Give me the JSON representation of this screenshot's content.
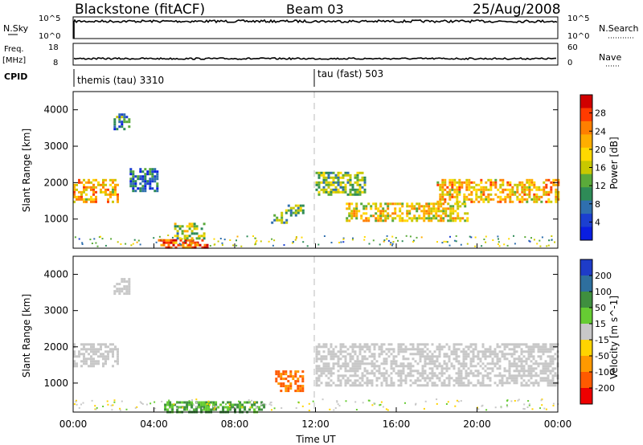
{
  "header": {
    "station": "Blackstone (fitACF)",
    "beam": "Beam 03",
    "date": "25/Aug/2008"
  },
  "strip_panels": {
    "nsky_label": "N.Sky",
    "nsky_ticks": [
      "10^5",
      "10^0"
    ],
    "nsearch_label": "N.Search",
    "nsearch_ticks": [
      "10^5",
      "10^0"
    ],
    "freq_label": "Freq.",
    "freq_unit": "[MHz]",
    "freq_ticks": [
      "18",
      "8"
    ],
    "nave_label": "Nave",
    "nave_ticks": [
      "60",
      "0"
    ],
    "cpid_label": "CPID",
    "cpid_entries": [
      {
        "label": "themis (tau) 3310",
        "start_hour": 0
      },
      {
        "label": "tau (fast) 503",
        "start_hour": 12
      }
    ]
  },
  "chart_data": [
    {
      "type": "heatmap",
      "parameter": "power",
      "ylabel": "Slant Range [km]",
      "xlim": [
        0,
        24
      ],
      "ylim": [
        200,
        4500
      ],
      "yticks": [
        1000,
        2000,
        3000,
        4000
      ],
      "colorbar": {
        "label": "Power [dB]",
        "ticks": [
          "28",
          "24",
          "20",
          "16",
          "12",
          "8",
          "4"
        ],
        "colors": [
          "#d10000",
          "#ff3b00",
          "#ff7f00",
          "#ffae00",
          "#ffd900",
          "#c8c800",
          "#5aaa3a",
          "#2e8b57",
          "#2f6fae",
          "#1b3fd0",
          "#0a1ee0"
        ]
      },
      "echo_regions": [
        {
          "t0": 0.0,
          "t1": 2.2,
          "r0": 1450,
          "r1": 2100,
          "level": 20
        },
        {
          "t0": 2.0,
          "t1": 2.8,
          "r0": 3500,
          "r1": 3900,
          "level": 8
        },
        {
          "t0": 2.8,
          "t1": 4.2,
          "r0": 1800,
          "r1": 2400,
          "level": 6
        },
        {
          "t0": 4.2,
          "t1": 6.8,
          "r0": 200,
          "r1": 450,
          "level": 26
        },
        {
          "t0": 5.0,
          "t1": 6.5,
          "r0": 500,
          "r1": 900,
          "level": 14
        },
        {
          "t0": 9.8,
          "t1": 10.6,
          "r0": 900,
          "r1": 1200,
          "level": 10
        },
        {
          "t0": 10.5,
          "t1": 11.4,
          "r0": 1100,
          "r1": 1400,
          "level": 12
        },
        {
          "t0": 12.0,
          "t1": 14.5,
          "r0": 1700,
          "r1": 2300,
          "level": 12
        },
        {
          "t0": 13.5,
          "t1": 19.5,
          "r0": 950,
          "r1": 1450,
          "level": 18
        },
        {
          "t0": 18.0,
          "t1": 24.0,
          "r0": 1450,
          "r1": 2100,
          "level": 20
        }
      ]
    },
    {
      "type": "heatmap",
      "parameter": "velocity",
      "xlabel": "Time UT",
      "ylabel": "Slant Range [km]",
      "xlim": [
        0,
        24
      ],
      "ylim": [
        200,
        4500
      ],
      "xticks": [
        "00:00",
        "04:00",
        "08:00",
        "12:00",
        "16:00",
        "20:00",
        "00:00"
      ],
      "yticks": [
        1000,
        2000,
        3000,
        4000
      ],
      "colorbar": {
        "label": "Velocity [m s^-1]",
        "ticks": [
          "200",
          "100",
          "50",
          "15",
          "-15",
          "-50",
          "-100",
          "-200"
        ],
        "colors": [
          "#1e3cc8",
          "#2e6f9e",
          "#3f8f3f",
          "#66cc33",
          "#c8c8c8",
          "#ffd400",
          "#ff9900",
          "#ff5a00",
          "#ee0000"
        ]
      },
      "echo_regions": [
        {
          "t0": 0.0,
          "t1": 2.2,
          "r0": 1450,
          "r1": 2100,
          "level": 0
        },
        {
          "t0": 2.0,
          "t1": 2.8,
          "r0": 3500,
          "r1": 3900,
          "level": 0
        },
        {
          "t0": 4.5,
          "t1": 9.5,
          "r0": 200,
          "r1": 500,
          "level": 40
        },
        {
          "t0": 10.0,
          "t1": 11.4,
          "r0": 800,
          "r1": 1350,
          "level": -80
        },
        {
          "t0": 12.0,
          "t1": 24.0,
          "r0": 950,
          "r1": 2100,
          "level": 0
        }
      ]
    }
  ]
}
